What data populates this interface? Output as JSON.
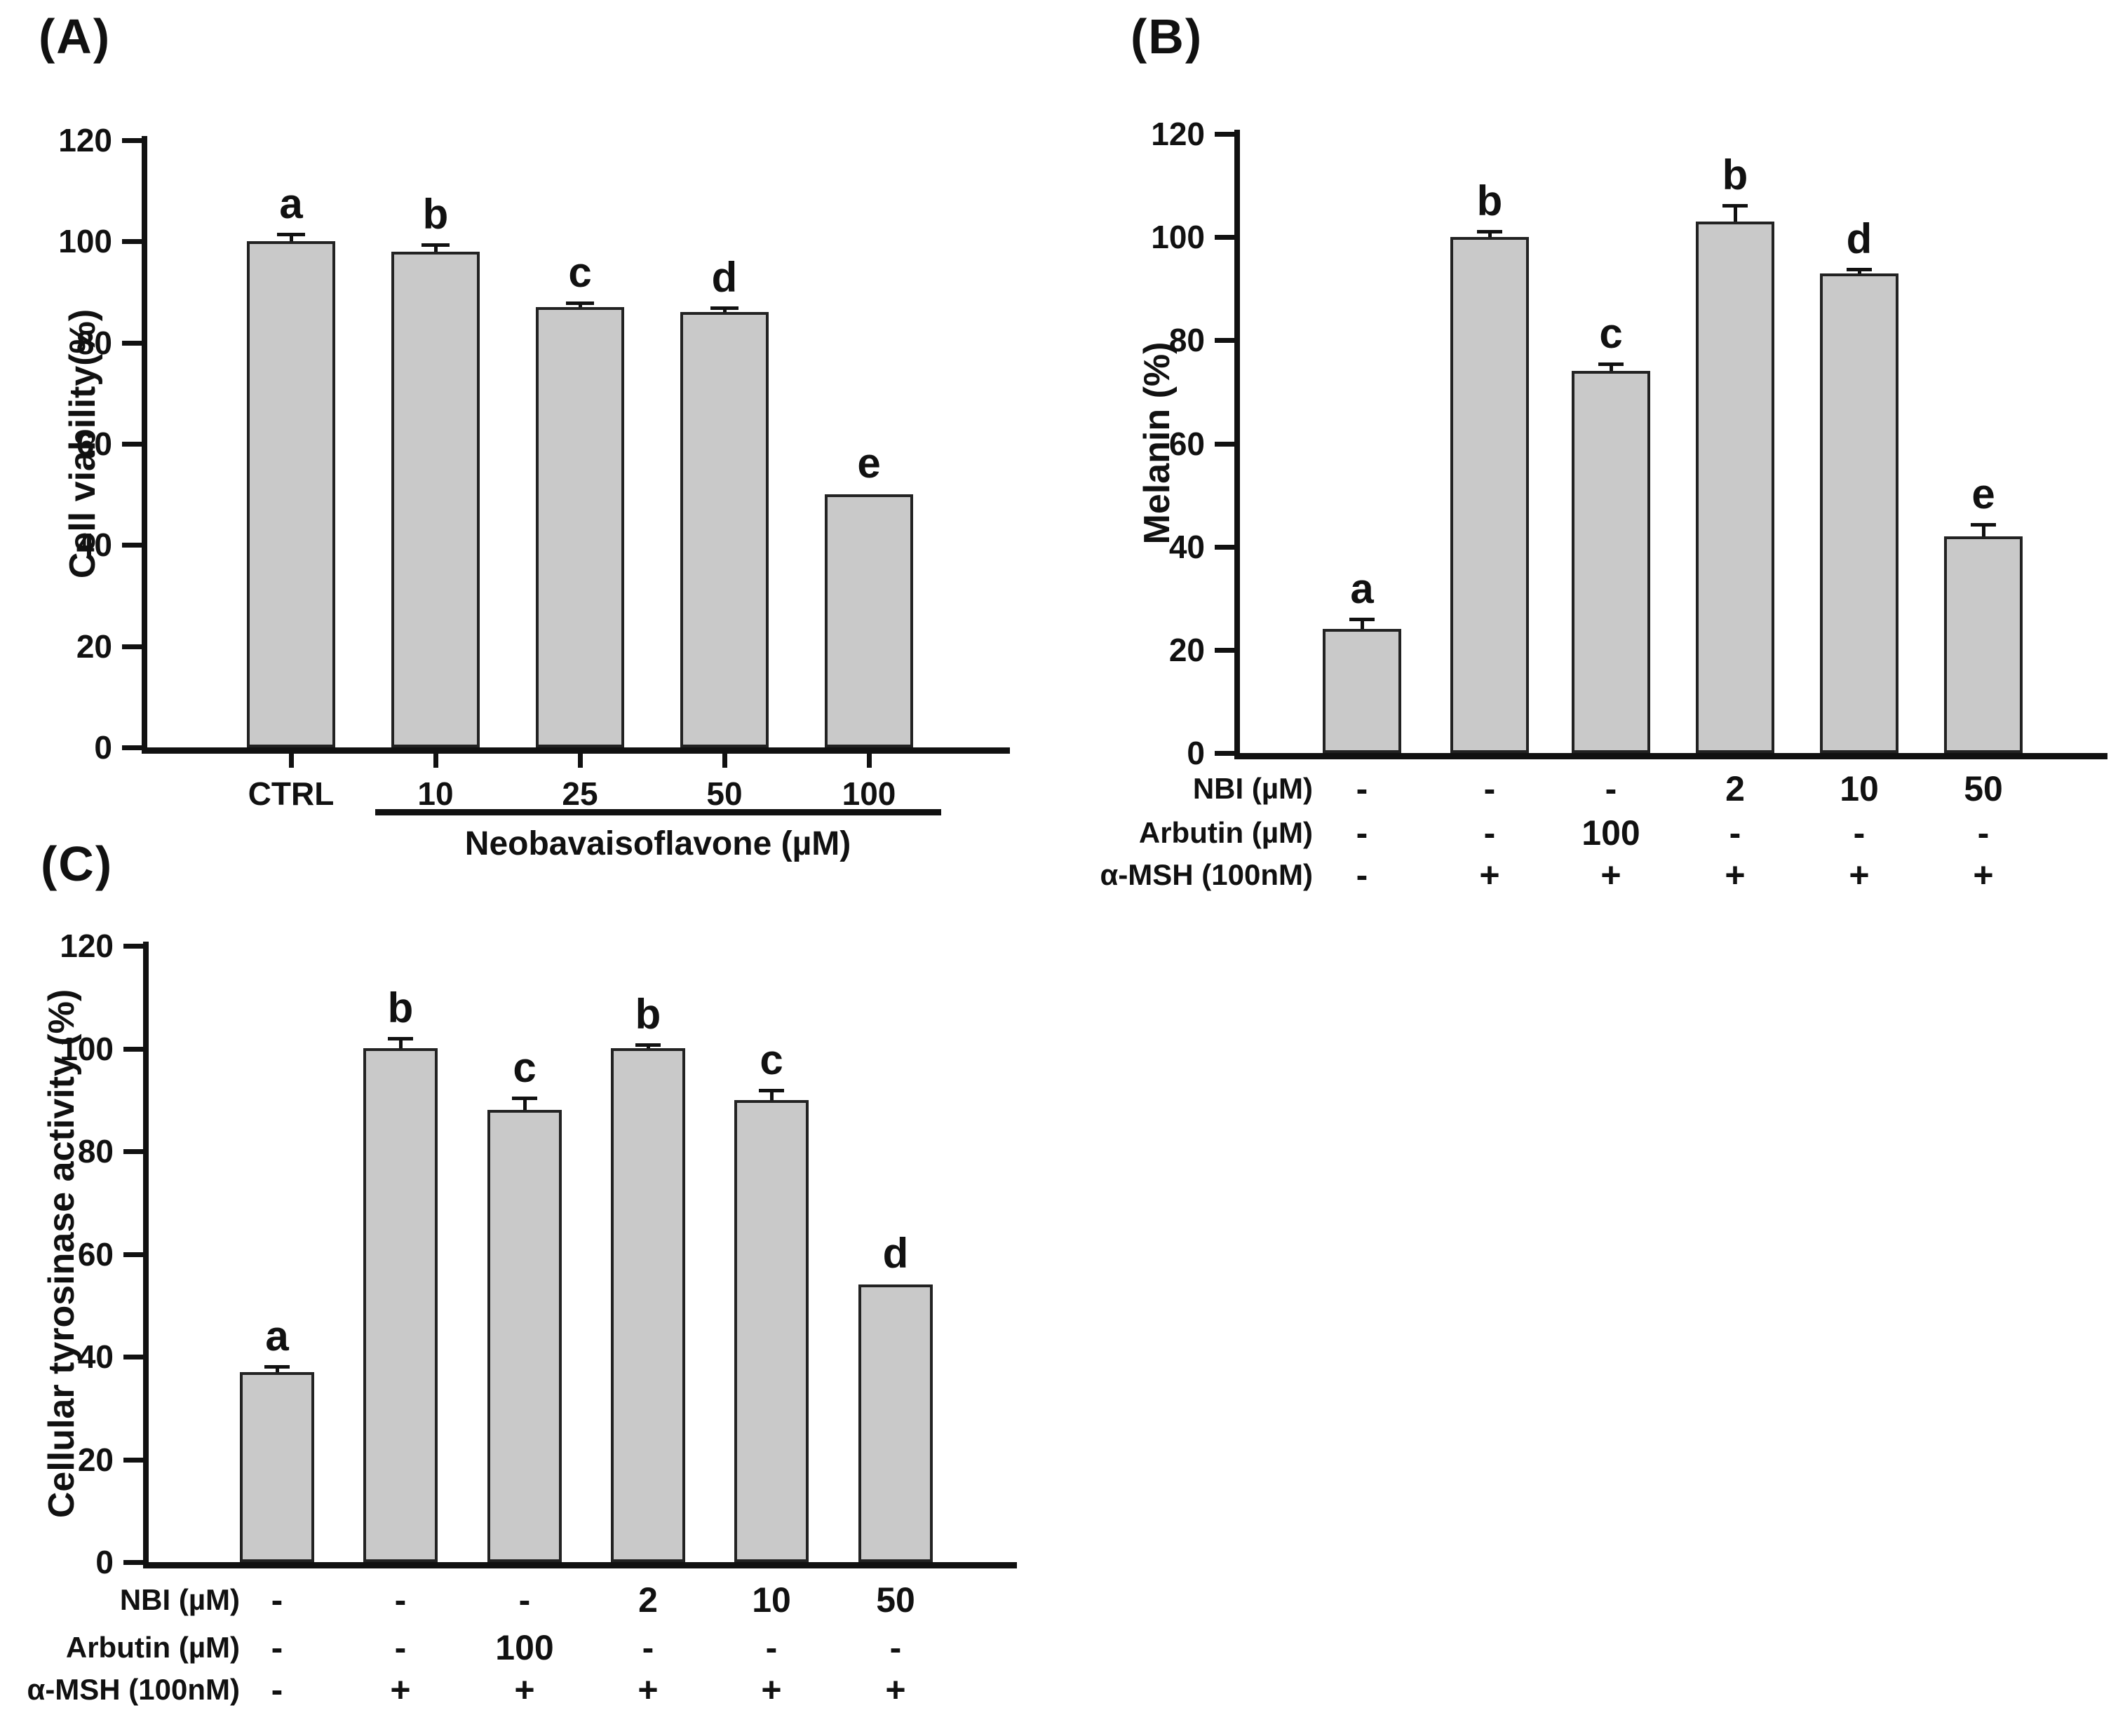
{
  "figure": {
    "background": "#ffffff",
    "ink_color": "#111111",
    "bar_fill": "#c9c9c9",
    "bar_border": "#222222"
  },
  "chart_data": [
    {
      "id": "A",
      "panel_label": "(A)",
      "type": "bar",
      "ylabel": "Cell viability(%)",
      "xlabel": "Neobavaisoflavone (µM)",
      "xlabel_group_covers": [
        "10",
        "100"
      ],
      "ylim": [
        0,
        120
      ],
      "yticks": [
        0,
        20,
        40,
        60,
        80,
        100,
        120
      ],
      "grid": "off",
      "legend": "none",
      "categories": [
        "CTRL",
        "10",
        "25",
        "50",
        "100"
      ],
      "values": [
        100,
        98,
        87,
        86,
        50
      ],
      "errors_plus": [
        1.2,
        1.2,
        0.7,
        0.7,
        0
      ],
      "sig_letters": [
        "a",
        "b",
        "c",
        "d",
        "e"
      ]
    },
    {
      "id": "B",
      "panel_label": "(B)",
      "type": "bar",
      "ylabel": "Melanin (%)",
      "ylim": [
        0,
        120
      ],
      "yticks": [
        0,
        20,
        40,
        60,
        80,
        100,
        120
      ],
      "grid": "off",
      "legend": "none",
      "values": [
        24,
        100,
        74,
        103,
        93,
        42
      ],
      "errors_plus": [
        1.8,
        1.0,
        1.2,
        3.0,
        0.7,
        2.2
      ],
      "sig_letters": [
        "a",
        "b",
        "c",
        "b",
        "d",
        "e"
      ],
      "treatment_rows": [
        {
          "label": "NBI (µM)",
          "values": [
            "-",
            "-",
            "-",
            "2",
            "10",
            "50"
          ]
        },
        {
          "label": "Arbutin (µM)",
          "values": [
            "-",
            "-",
            "100",
            "-",
            "-",
            "-"
          ]
        },
        {
          "label": "α-MSH (100nM)",
          "values": [
            "-",
            "+",
            "+",
            "+",
            "+",
            "+"
          ]
        }
      ]
    },
    {
      "id": "C",
      "panel_label": "(C)",
      "type": "bar",
      "ylabel": "Cellular tyrosinase activity (%)",
      "ylim": [
        0,
        120
      ],
      "yticks": [
        0,
        20,
        40,
        60,
        80,
        100,
        120
      ],
      "grid": "off",
      "legend": "none",
      "values": [
        37,
        100,
        88,
        100,
        90,
        54
      ],
      "errors_plus": [
        1.0,
        1.8,
        2.2,
        0.6,
        1.8,
        0
      ],
      "sig_letters": [
        "a",
        "b",
        "c",
        "b",
        "c",
        "d"
      ],
      "treatment_rows": [
        {
          "label": "NBI (µM)",
          "values": [
            "-",
            "-",
            "-",
            "2",
            "10",
            "50"
          ]
        },
        {
          "label": "Arbutin (µM)",
          "values": [
            "-",
            "-",
            "100",
            "-",
            "-",
            "-"
          ]
        },
        {
          "label": "α-MSH (100nM)",
          "values": [
            "-",
            "+",
            "+",
            "+",
            "+",
            "+"
          ]
        }
      ]
    }
  ]
}
